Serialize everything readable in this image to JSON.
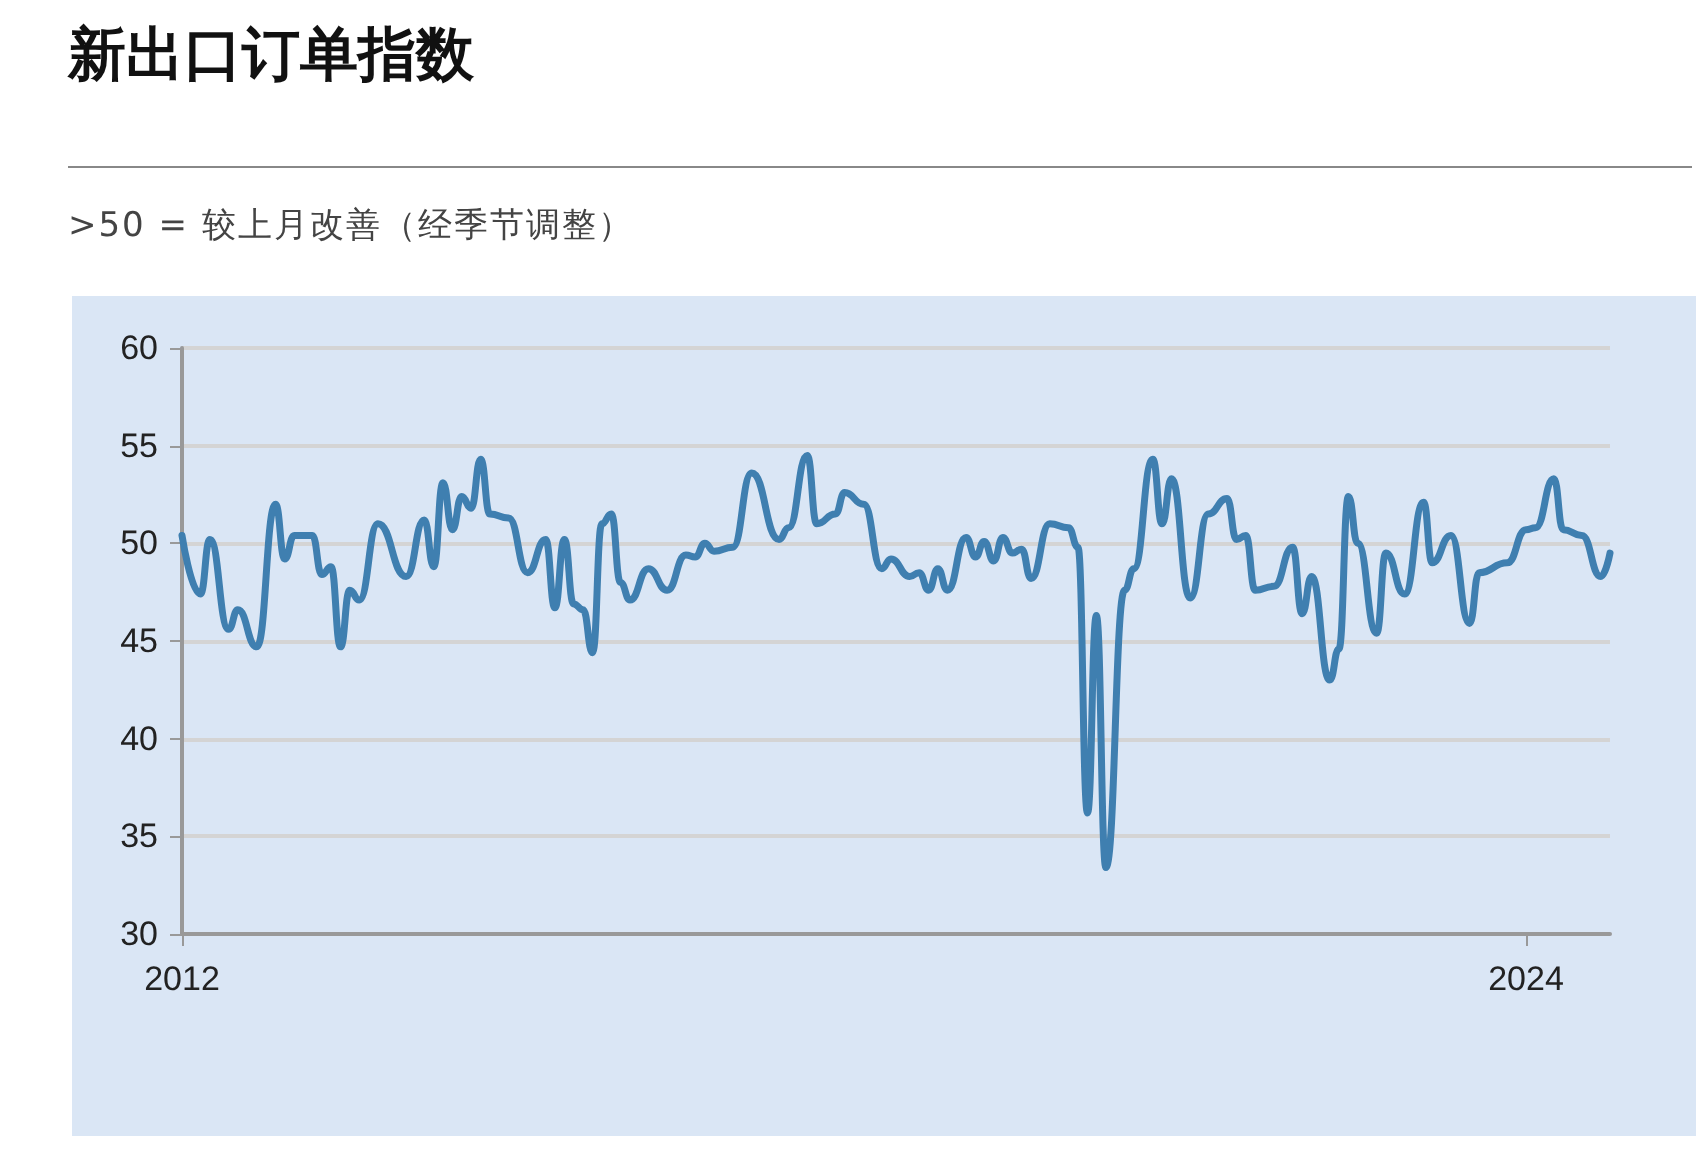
{
  "chart_data": {
    "type": "line",
    "title": "新出口订单指数",
    "subtitle": ">50 = 较上月改善（经季节调整）",
    "x": [
      "2012-01",
      "2012-03",
      "2012-04",
      "2012-06",
      "2012-07",
      "2012-09",
      "2012-11",
      "2012-12",
      "2013-01",
      "2013-03",
      "2013-04",
      "2013-05",
      "2013-06",
      "2013-07",
      "2013-08",
      "2013-10",
      "2014-01",
      "2014-03",
      "2014-04",
      "2014-05",
      "2014-06",
      "2014-07",
      "2014-08",
      "2014-09",
      "2014-10",
      "2014-12",
      "2015-02",
      "2015-04",
      "2015-05",
      "2015-06",
      "2015-07",
      "2015-08",
      "2015-09",
      "2015-10",
      "2015-11",
      "2015-12",
      "2016-01",
      "2016-03",
      "2016-05",
      "2016-07",
      "2016-08",
      "2016-09",
      "2016-10",
      "2016-12",
      "2017-02",
      "2017-05",
      "2017-06",
      "2017-08",
      "2017-09",
      "2017-11",
      "2017-12",
      "2018-02",
      "2018-04",
      "2018-05",
      "2018-07",
      "2018-08",
      "2018-09",
      "2018-10",
      "2018-11",
      "2019-01",
      "2019-02",
      "2019-03",
      "2019-04",
      "2019-05",
      "2019-06",
      "2019-07",
      "2019-08",
      "2019-10",
      "2019-12",
      "2020-01",
      "2020-02",
      "2020-03",
      "2020-04",
      "2020-06",
      "2020-07",
      "2020-09",
      "2020-10",
      "2020-11",
      "2021-01",
      "2021-03",
      "2021-05",
      "2021-06",
      "2021-07",
      "2021-08",
      "2021-10",
      "2021-12",
      "2022-01",
      "2022-02",
      "2022-04",
      "2022-05",
      "2022-06",
      "2022-07",
      "2022-09",
      "2022-10",
      "2022-12",
      "2023-02",
      "2023-03",
      "2023-05",
      "2023-07",
      "2023-08",
      "2023-11",
      "2024-01",
      "2024-02",
      "2024-04",
      "2024-05",
      "2024-07",
      "2024-09",
      "2024-10"
    ],
    "series": [
      {
        "color": "#3f7fb0",
        "values": [
          50.4,
          47.4,
          50.2,
          45.6,
          46.6,
          44.7,
          52.0,
          49.2,
          50.4,
          50.4,
          48.4,
          48.8,
          44.7,
          47.6,
          47.1,
          51.0,
          48.3,
          51.2,
          48.8,
          53.1,
          50.7,
          52.4,
          51.8,
          54.3,
          51.5,
          51.3,
          48.5,
          50.2,
          46.7,
          50.2,
          46.9,
          46.6,
          44.4,
          51.0,
          51.5,
          48.0,
          47.1,
          48.7,
          47.6,
          49.4,
          49.3,
          50.0,
          49.6,
          49.8,
          53.6,
          50.2,
          50.8,
          54.5,
          51.0,
          51.5,
          52.6,
          52.0,
          48.7,
          49.2,
          48.3,
          48.5,
          47.6,
          48.7,
          47.6,
          50.3,
          49.3,
          50.1,
          49.1,
          50.3,
          49.5,
          49.7,
          48.2,
          51.0,
          50.8,
          49.8,
          36.2,
          46.3,
          33.4,
          47.6,
          48.7,
          54.3,
          51.0,
          53.3,
          47.2,
          51.5,
          52.3,
          50.2,
          50.4,
          47.6,
          47.8,
          49.8,
          46.4,
          48.3,
          43.0,
          44.6,
          52.4,
          50.0,
          45.4,
          49.5,
          47.4,
          52.1,
          49.0,
          50.4,
          45.9,
          48.5,
          49.0,
          50.7,
          50.8,
          53.3,
          50.7,
          50.4,
          48.3,
          49.5
        ]
      }
    ],
    "xlim": [
      "2012-01",
      "2024-10"
    ],
    "xticks": [
      {
        "value": "2012-01",
        "label": "2012"
      },
      {
        "value": "2024-01",
        "label": "2024"
      }
    ],
    "ylim": [
      30,
      60
    ],
    "yticks": [
      30,
      35,
      40,
      45,
      50,
      55,
      60
    ],
    "grid": "y",
    "marker": "none",
    "line_style": "solid"
  }
}
